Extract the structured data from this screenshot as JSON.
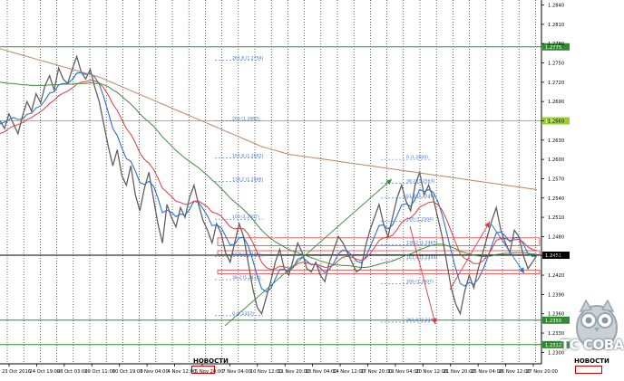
{
  "chart_data": {
    "type": "line",
    "symbol": "GBPUSD",
    "ylim": [
      1.2285,
      1.2845
    ],
    "price_labels": [
      "1.2840",
      "1.2810",
      "1.2780",
      "1.2750",
      "1.2720",
      "1.2690",
      "1.2660",
      "1.2630",
      "1.2600",
      "1.2570",
      "1.2540",
      "1.2510",
      "1.2480",
      "1.2450",
      "1.2420",
      "1.2390",
      "1.2360",
      "1.2330",
      "1.2300"
    ],
    "price_values": [
      1.284,
      1.281,
      1.278,
      1.275,
      1.272,
      1.269,
      1.266,
      1.263,
      1.26,
      1.257,
      1.254,
      1.251,
      1.248,
      1.245,
      1.242,
      1.239,
      1.236,
      1.233,
      1.23
    ],
    "time_labels": [
      "23 Oct 2016",
      "24 Oct 19:00",
      "28 Oct 03:00",
      "29 Oct 11:00",
      "30 Oct 19:00",
      "3 Nov 04:00",
      "4 Nov 12:00",
      "5 Nov 20:00",
      "7 Nov 04:00",
      "10 Nov 12:00",
      "11 Nov 20:00",
      "13 Nov 04:00",
      "14 Nov 12:00",
      "17 Nov 20:00",
      "19 Nov 04:00",
      "20 Nov 12:00",
      "21 Nov 20:00",
      "25 Nov 04:00",
      "26 Nov 12:00",
      "27 Nov 20:00"
    ],
    "level_labels": [
      {
        "text": "1.2775",
        "value": 1.2775,
        "color": "#2e8b2e"
      },
      {
        "text": "1.2660",
        "value": 1.266,
        "color": "#9acd32"
      },
      {
        "text": "1.2451",
        "value": 1.2451,
        "color": "#000000"
      },
      {
        "text": "1.2350",
        "value": 1.235,
        "color": "#2e8b2e"
      },
      {
        "text": "1.2312",
        "value": 1.2312,
        "color": "#2e8b2e"
      }
    ],
    "fibo_left": [
      {
        "text": "261.8 (1.2754)",
        "value": 1.2754
      },
      {
        "text": "200 (1.2660)",
        "value": 1.266
      },
      {
        "text": "161.8 (1.2602)",
        "value": 1.2602
      },
      {
        "text": "138.2 (1.2566)",
        "value": 1.2566
      },
      {
        "text": "100 (1.2507)",
        "value": 1.2507
      },
      {
        "text": "61.8 (1.2449)",
        "value": 1.2449
      },
      {
        "text": "38.2 (1.2413)",
        "value": 1.2413
      },
      {
        "text": "0 (1.2357)",
        "value": 1.2357
      }
    ],
    "fibo_right": [
      {
        "text": "0 (1.2600)",
        "value": 1.26
      },
      {
        "text": "38.2 (1.2563)",
        "value": 1.2563
      },
      {
        "text": "61.8 (1.2540)",
        "value": 1.254
      },
      {
        "text": "100 (1.2504)",
        "value": 1.2504
      },
      {
        "text": "138.2 (1.2467)",
        "value": 1.2467
      },
      {
        "text": "161.8 (1.2444)",
        "value": 1.2444
      },
      {
        "text": "200 (1.2407)",
        "value": 1.2407
      },
      {
        "text": "261.8 (1.2347)",
        "value": 1.2347
      }
    ],
    "series": [
      {
        "values": [
          1.266,
          1.2648,
          1.2671,
          1.2655,
          1.264,
          1.2668,
          1.269,
          1.2675,
          1.2702,
          1.2688,
          1.2715,
          1.273,
          1.2708,
          1.2742,
          1.2725,
          1.2718,
          1.274,
          1.276,
          1.2736,
          1.2725,
          1.274,
          1.2712,
          1.269,
          1.2655,
          1.262,
          1.259,
          1.2615,
          1.2575,
          1.256,
          1.259,
          1.2545,
          1.252,
          1.2555,
          1.258,
          1.254,
          1.25,
          1.247,
          1.253,
          1.251,
          1.2495,
          1.2525,
          1.251,
          1.254,
          1.256,
          1.253,
          1.2505,
          1.249,
          1.247,
          1.25,
          1.2485,
          1.2455,
          1.244,
          1.247,
          1.25,
          1.248,
          1.244,
          1.24,
          1.237,
          1.236,
          1.2385,
          1.241,
          1.244,
          1.246,
          1.243,
          1.242,
          1.2445,
          1.247,
          1.2455,
          1.243,
          1.2425,
          1.244,
          1.242,
          1.241,
          1.244,
          1.246,
          1.248,
          1.247,
          1.2455,
          1.244,
          1.2425,
          1.243,
          1.2465,
          1.249,
          1.251,
          1.253,
          1.25,
          1.248,
          1.251,
          1.254,
          1.256,
          1.2535,
          1.252,
          1.256,
          1.258,
          1.2545,
          1.256,
          1.254,
          1.251,
          1.248,
          1.244,
          1.24,
          1.2375,
          1.236,
          1.2395,
          1.242,
          1.24,
          1.243,
          1.2455,
          1.248,
          1.2505,
          1.2525,
          1.249,
          1.247,
          1.2455,
          1.249,
          1.248,
          1.245,
          1.243,
          1.244,
          1.2451
        ]
      },
      {
        "values": [
          1.2655,
          1.2658,
          1.2662,
          1.2665,
          1.2662,
          1.2663,
          1.267,
          1.2672,
          1.268,
          1.2683,
          1.2692,
          1.2703,
          1.2705,
          1.2716,
          1.2718,
          1.2718,
          1.2724,
          1.2734,
          1.2735,
          1.2732,
          1.2734,
          1.2728,
          1.2717,
          1.2697,
          1.2673,
          1.2648,
          1.2637,
          1.2618,
          1.2601,
          1.2597,
          1.2582,
          1.2564,
          1.2561,
          1.2566,
          1.2559,
          1.254,
          1.2517,
          1.2521,
          1.2518,
          1.2511,
          1.2515,
          1.2513,
          1.2522,
          1.2535,
          1.2533,
          1.2523,
          1.2512,
          1.2497,
          1.2498,
          1.2494,
          1.2481,
          1.2467,
          1.2468,
          1.2478,
          1.2479,
          1.2466,
          1.2444,
          1.2419,
          1.2399,
          1.2394,
          1.2399,
          1.2414,
          1.2429,
          1.2429,
          1.2426,
          1.2432,
          1.2445,
          1.2448,
          1.2442,
          1.2436,
          1.2437,
          1.2431,
          1.2424,
          1.2429,
          1.2439,
          1.2453,
          1.2459,
          1.2457,
          1.2451,
          1.2442,
          1.2439,
          1.2448,
          1.2463,
          1.248,
          1.2497,
          1.2498,
          1.2492,
          1.2498,
          1.2513,
          1.2529,
          1.2531,
          1.2527,
          1.2538,
          1.2553,
          1.255,
          1.2553,
          1.2549,
          1.2535,
          1.2514,
          1.2486,
          1.2457,
          1.243,
          1.2407,
          1.2403,
          1.2409,
          1.2406,
          1.2414,
          1.2428,
          1.2446,
          1.2466,
          1.2486,
          1.2487,
          1.2481,
          1.2472,
          1.2478,
          1.2479,
          1.2468,
          1.2454,
          1.2449,
          1.245
        ]
      },
      {
        "values": [
          1.264,
          1.2643,
          1.2648,
          1.2652,
          1.2654,
          1.2657,
          1.2662,
          1.2665,
          1.267,
          1.2674,
          1.268,
          1.2687,
          1.2692,
          1.2699,
          1.2703,
          1.2706,
          1.2711,
          1.2717,
          1.272,
          1.2721,
          1.2723,
          1.2722,
          1.2719,
          1.2711,
          1.27,
          1.2686,
          1.2676,
          1.2662,
          1.2648,
          1.2639,
          1.2626,
          1.261,
          1.26,
          1.2594,
          1.2585,
          1.2571,
          1.2555,
          1.2549,
          1.2542,
          1.2535,
          1.2533,
          1.253,
          1.2531,
          1.2535,
          1.2535,
          1.2531,
          1.2526,
          1.2518,
          1.2516,
          1.2512,
          1.2504,
          1.2495,
          1.2492,
          1.2493,
          1.2492,
          1.2484,
          1.2471,
          1.2455,
          1.244,
          1.2432,
          1.2429,
          1.243,
          1.2434,
          1.2433,
          1.2431,
          1.2433,
          1.2438,
          1.244,
          1.2439,
          1.2437,
          1.2437,
          1.2435,
          1.2432,
          1.2433,
          1.2436,
          1.2443,
          1.2448,
          1.2449,
          1.2448,
          1.2445,
          1.2443,
          1.2446,
          1.2453,
          1.2463,
          1.2474,
          1.2478,
          1.2479,
          1.2482,
          1.2491,
          1.2502,
          1.2507,
          1.2509,
          1.2516,
          1.2526,
          1.2529,
          1.2533,
          1.2534,
          1.253,
          1.2521,
          1.2506,
          1.2488,
          1.247,
          1.2453,
          1.2446,
          1.2443,
          1.2438,
          1.2438,
          1.2442,
          1.245,
          1.2461,
          1.2474,
          1.2477,
          1.2477,
          1.2474,
          1.2475,
          1.2476,
          1.2471,
          1.2464,
          1.246,
          1.2458
        ]
      },
      {
        "values": [
          1.272,
          1.2719,
          1.2718,
          1.2718,
          1.2717,
          1.2716,
          1.2716,
          1.2715,
          1.2715,
          1.2715,
          1.2715,
          1.2716,
          1.2716,
          1.2716,
          1.2717,
          1.2717,
          1.2717,
          1.2718,
          1.2718,
          1.2718,
          1.2719,
          1.2718,
          1.2718,
          1.2716,
          1.2713,
          1.2708,
          1.2704,
          1.2698,
          1.2692,
          1.2686,
          1.2679,
          1.2671,
          1.2664,
          1.2658,
          1.2652,
          1.2644,
          1.2635,
          1.2628,
          1.2621,
          1.2614,
          1.2608,
          1.2602,
          1.2597,
          1.2592,
          1.2587,
          1.2581,
          1.2575,
          1.2568,
          1.2562,
          1.2555,
          1.2548,
          1.254,
          1.2534,
          1.2528,
          1.2522,
          1.2515,
          1.2507,
          1.2498,
          1.249,
          1.2483,
          1.2477,
          1.2472,
          1.2468,
          1.2464,
          1.246,
          1.2457,
          1.2455,
          1.2452,
          1.245,
          1.2447,
          1.2445,
          1.2442,
          1.244,
          1.2438,
          1.2436,
          1.2436,
          1.2435,
          1.2435,
          1.2434,
          1.2433,
          1.2432,
          1.2432,
          1.2433,
          1.2435,
          1.2437,
          1.2439,
          1.244,
          1.2442,
          1.2445,
          1.2448,
          1.2451,
          1.2453,
          1.2456,
          1.246,
          1.2462,
          1.2465,
          1.2467,
          1.2468,
          1.2468,
          1.2466,
          1.2464,
          1.2461,
          1.2457,
          1.2455,
          1.2453,
          1.2451,
          1.245,
          1.2449,
          1.2449,
          1.245,
          1.2452,
          1.2453,
          1.2454,
          1.2454,
          1.2455,
          1.2455,
          1.2455,
          1.2454,
          1.2453,
          1.2452
        ]
      },
      {
        "values": [
          1.2772,
          1.277,
          1.2768,
          1.2766,
          1.2764,
          1.2762,
          1.276,
          1.2758,
          1.2756,
          1.2754,
          1.2752,
          1.275,
          1.2748,
          1.2746,
          1.2744,
          1.2742,
          1.274,
          1.2738,
          1.2736,
          1.2734,
          1.2732,
          1.273,
          1.2728,
          1.2725,
          1.2722,
          1.2719,
          1.2716,
          1.2713,
          1.271,
          1.2707,
          1.2704,
          1.2701,
          1.2698,
          1.2695,
          1.2692,
          1.2689,
          1.2686,
          1.2683,
          1.268,
          1.2677,
          1.2674,
          1.2671,
          1.2668,
          1.2665,
          1.2662,
          1.2659,
          1.2656,
          1.2653,
          1.265,
          1.2647,
          1.2644,
          1.2641,
          1.2638,
          1.2635,
          1.2632,
          1.2629,
          1.2626,
          1.2623,
          1.262,
          1.2618,
          1.2616,
          1.2614,
          1.2612,
          1.261,
          1.2608,
          1.2607,
          1.2606,
          1.2605,
          1.2604,
          1.2603,
          1.2602,
          1.2601,
          1.26,
          1.2599,
          1.2598,
          1.2597,
          1.2596,
          1.2595,
          1.2594,
          1.2593,
          1.2592,
          1.2591,
          1.259,
          1.2589,
          1.2588,
          1.2587,
          1.2586,
          1.2585,
          1.2584,
          1.2583,
          1.2582,
          1.2581,
          1.258,
          1.2579,
          1.2578,
          1.2577,
          1.2576,
          1.2575,
          1.2574,
          1.2573,
          1.2572,
          1.2571,
          1.257,
          1.2569,
          1.2568,
          1.2567,
          1.2566,
          1.2565,
          1.2564,
          1.2563,
          1.2562,
          1.2561,
          1.256,
          1.2559,
          1.2558,
          1.2557,
          1.2556,
          1.2555,
          1.2554,
          1.2553
        ]
      }
    ]
  },
  "news": {
    "label_left": "НОВОСТИ",
    "label_right": "НОВОСТИ"
  },
  "logo": {
    "text": "TC COBA"
  }
}
